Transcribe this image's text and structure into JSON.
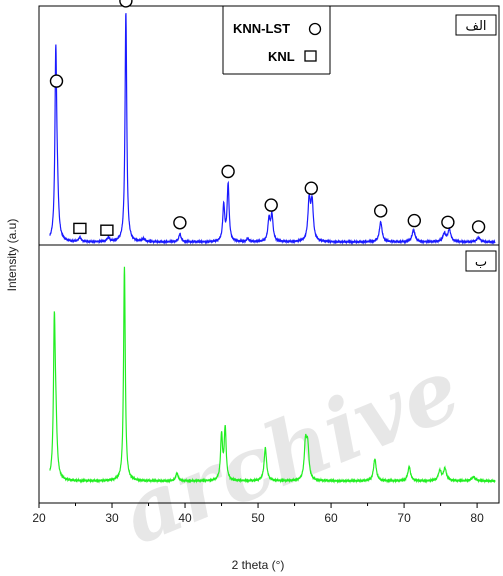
{
  "chart_data": {
    "type": "line",
    "xlabel": "2 theta (°)",
    "ylabel": "Intensity (a.u)",
    "xlim": [
      20,
      83
    ],
    "x_ticks": [
      "20",
      "30",
      "40",
      "50",
      "60",
      "70",
      "80"
    ],
    "grid": false,
    "legend": {
      "placement": "top-right",
      "entries": [
        {
          "label": "KNN-LST",
          "marker": "circle"
        },
        {
          "label": "KNL",
          "marker": "square"
        }
      ]
    },
    "series": [
      {
        "panel_label": "الف",
        "color": "#1a1aff",
        "baseline": 242,
        "peaks": [
          {
            "x": 22.3,
            "height": 178,
            "width": 0.14
          },
          {
            "x": 22.5,
            "height": 40,
            "width": 0.2
          },
          {
            "x": 31.9,
            "height": 230,
            "width": 0.14
          },
          {
            "x": 25.6,
            "height": 4,
            "width": 0.2
          },
          {
            "x": 29.5,
            "height": 4,
            "width": 0.2
          },
          {
            "x": 34.3,
            "height": 3,
            "width": 0.2
          },
          {
            "x": 39.3,
            "height": 8,
            "width": 0.18
          },
          {
            "x": 45.3,
            "height": 36,
            "width": 0.16
          },
          {
            "x": 45.9,
            "height": 57,
            "width": 0.16
          },
          {
            "x": 48.6,
            "height": 3,
            "width": 0.2
          },
          {
            "x": 51.5,
            "height": 22,
            "width": 0.18
          },
          {
            "x": 51.9,
            "height": 26,
            "width": 0.18
          },
          {
            "x": 57.0,
            "height": 40,
            "width": 0.2
          },
          {
            "x": 57.4,
            "height": 38,
            "width": 0.2
          },
          {
            "x": 66.8,
            "height": 20,
            "width": 0.22
          },
          {
            "x": 71.3,
            "height": 12,
            "width": 0.24
          },
          {
            "x": 75.5,
            "height": 8,
            "width": 0.24
          },
          {
            "x": 76.2,
            "height": 12,
            "width": 0.24
          },
          {
            "x": 80.2,
            "height": 4,
            "width": 0.3
          }
        ],
        "markers": [
          {
            "x": 22.4,
            "shape": "circle"
          },
          {
            "x": 31.9,
            "shape": "circle"
          },
          {
            "x": 25.6,
            "shape": "square"
          },
          {
            "x": 29.3,
            "shape": "square"
          },
          {
            "x": 39.3,
            "shape": "circle"
          },
          {
            "x": 45.9,
            "shape": "circle"
          },
          {
            "x": 51.8,
            "shape": "circle"
          },
          {
            "x": 57.3,
            "shape": "circle"
          },
          {
            "x": 66.8,
            "shape": "circle"
          },
          {
            "x": 71.4,
            "shape": "circle"
          },
          {
            "x": 76.0,
            "shape": "circle"
          },
          {
            "x": 80.2,
            "shape": "circle"
          }
        ]
      },
      {
        "panel_label": "ب",
        "color": "#22ee22",
        "baseline": 481,
        "peaks": [
          {
            "x": 22.1,
            "height": 145,
            "width": 0.14
          },
          {
            "x": 22.3,
            "height": 50,
            "width": 0.2
          },
          {
            "x": 31.7,
            "height": 214,
            "width": 0.14
          },
          {
            "x": 38.9,
            "height": 8,
            "width": 0.18
          },
          {
            "x": 45.0,
            "height": 45,
            "width": 0.16
          },
          {
            "x": 45.5,
            "height": 52,
            "width": 0.16
          },
          {
            "x": 51.0,
            "height": 33,
            "width": 0.2
          },
          {
            "x": 56.5,
            "height": 36,
            "width": 0.2
          },
          {
            "x": 56.8,
            "height": 32,
            "width": 0.2
          },
          {
            "x": 66.0,
            "height": 22,
            "width": 0.22
          },
          {
            "x": 70.7,
            "height": 14,
            "width": 0.22
          },
          {
            "x": 74.9,
            "height": 10,
            "width": 0.24
          },
          {
            "x": 75.6,
            "height": 12,
            "width": 0.24
          },
          {
            "x": 79.5,
            "height": 4,
            "width": 0.3
          }
        ]
      }
    ]
  },
  "watermark": "archive"
}
